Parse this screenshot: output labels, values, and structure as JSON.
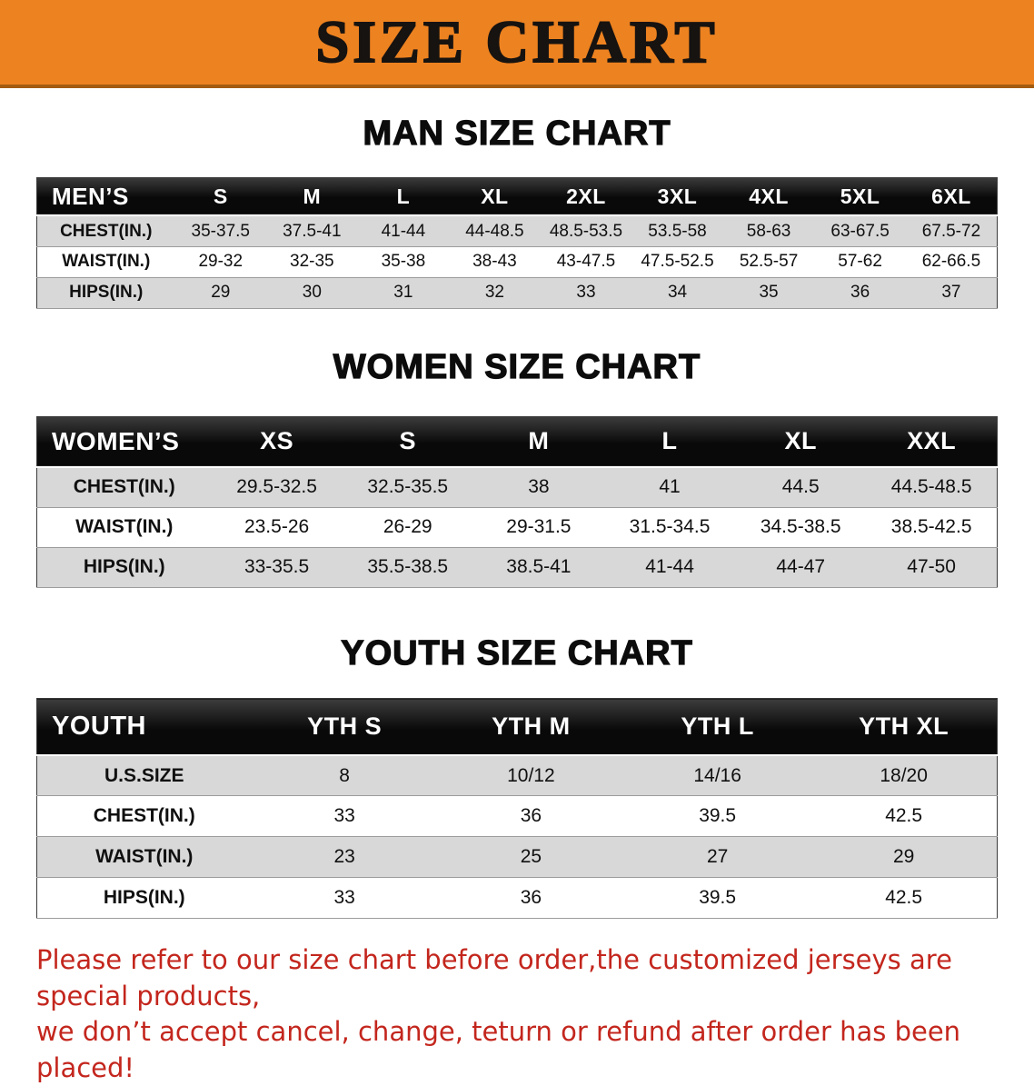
{
  "banner": {
    "title": "SIZE CHART",
    "bg_color": "#ED8220",
    "text_color": "#171310"
  },
  "footer_note": {
    "line1": "Please refer to our size chart before order,the customized jerseys are special products,",
    "line2": "we don’t accept cancel, change, teturn or refund after order has been placed!",
    "color": "#C3261D"
  },
  "colors": {
    "header_row_bg": "#0A0A0A",
    "header_row_text": "#FFFFFF",
    "shaded_row_bg": "#D8D8D8",
    "plain_row_bg": "#FFFFFF"
  },
  "chart_data": [
    {
      "type": "table",
      "title": "MAN SIZE CHART",
      "columns": [
        "MEN’S",
        "S",
        "M",
        "L",
        "XL",
        "2XL",
        "3XL",
        "4XL",
        "5XL",
        "6XL"
      ],
      "rows": [
        [
          "CHEST(IN.)",
          "35-37.5",
          "37.5-41",
          "41-44",
          "44-48.5",
          "48.5-53.5",
          "53.5-58",
          "58-63",
          "63-67.5",
          "67.5-72"
        ],
        [
          "WAIST(IN.)",
          "29-32",
          "32-35",
          "35-38",
          "38-43",
          "43-47.5",
          "47.5-52.5",
          "52.5-57",
          "57-62",
          "62-66.5"
        ],
        [
          "HIPS(IN.)",
          "29",
          "30",
          "31",
          "32",
          "33",
          "34",
          "35",
          "36",
          "37"
        ]
      ]
    },
    {
      "type": "table",
      "title": "WOMEN SIZE CHART",
      "columns": [
        "WOMEN’S",
        "XS",
        "S",
        "M",
        "L",
        "XL",
        "XXL"
      ],
      "rows": [
        [
          "CHEST(IN.)",
          "29.5-32.5",
          "32.5-35.5",
          "38",
          "41",
          "44.5",
          "44.5-48.5"
        ],
        [
          "WAIST(IN.)",
          "23.5-26",
          "26-29",
          "29-31.5",
          "31.5-34.5",
          "34.5-38.5",
          "38.5-42.5"
        ],
        [
          "HIPS(IN.)",
          "33-35.5",
          "35.5-38.5",
          "38.5-41",
          "41-44",
          "44-47",
          "47-50"
        ]
      ]
    },
    {
      "type": "table",
      "title": "YOUTH SIZE CHART",
      "columns": [
        "YOUTH",
        "YTH S",
        "YTH M",
        "YTH L",
        "YTH XL"
      ],
      "rows": [
        [
          "U.S.SIZE",
          "8",
          "10/12",
          "14/16",
          "18/20"
        ],
        [
          "CHEST(IN.)",
          "33",
          "36",
          "39.5",
          "42.5"
        ],
        [
          "WAIST(IN.)",
          "23",
          "25",
          "27",
          "29"
        ],
        [
          "HIPS(IN.)",
          "33",
          "36",
          "39.5",
          "42.5"
        ]
      ]
    }
  ]
}
